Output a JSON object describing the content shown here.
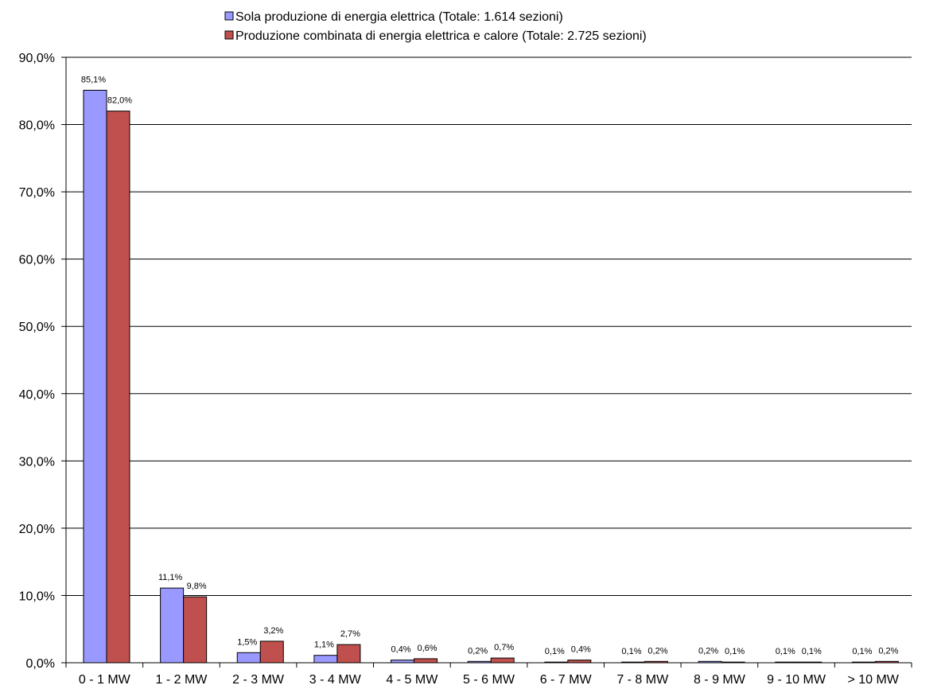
{
  "chart_data": {
    "type": "bar",
    "categories": [
      "0 - 1 MW",
      "1 - 2 MW",
      "2 - 3 MW",
      "3 - 4 MW",
      "4 - 5 MW",
      "5 - 6 MW",
      "6 - 7 MW",
      "7 - 8 MW",
      "8 - 9 MW",
      "9 - 10 MW",
      "> 10 MW"
    ],
    "series": [
      {
        "name": "Sola produzione di energia elettrica (Totale: 1.614 sezioni)",
        "values": [
          85.1,
          11.1,
          1.5,
          1.1,
          0.4,
          0.2,
          0.1,
          0.1,
          0.2,
          0.1,
          0.1
        ],
        "labels": [
          "85,1%",
          "11,1%",
          "1,5%",
          "1,1%",
          "0,4%",
          "0,2%",
          "0,1%",
          "0,1%",
          "0,2%",
          "0,1%",
          "0,1%"
        ],
        "color": "#9999ff"
      },
      {
        "name": "Produzione combinata di energia elettrica e calore (Totale: 2.725 sezioni)",
        "values": [
          82.0,
          9.8,
          3.2,
          2.7,
          0.6,
          0.7,
          0.4,
          0.2,
          0.1,
          0.1,
          0.2
        ],
        "labels": [
          "82,0%",
          "9,8%",
          "3,2%",
          "2,7%",
          "0,6%",
          "0,7%",
          "0,4%",
          "0,2%",
          "0,1%",
          "0,1%",
          "0,2%"
        ],
        "color": "#c0504d"
      }
    ],
    "ylim": [
      0,
      90
    ],
    "yticks": [
      0,
      10,
      20,
      30,
      40,
      50,
      60,
      70,
      80,
      90
    ],
    "ytick_labels": [
      "0,0%",
      "10,0%",
      "20,0%",
      "30,0%",
      "40,0%",
      "50,0%",
      "60,0%",
      "70,0%",
      "80,0%",
      "90,0%"
    ],
    "grid": true,
    "legend_position": "top"
  }
}
